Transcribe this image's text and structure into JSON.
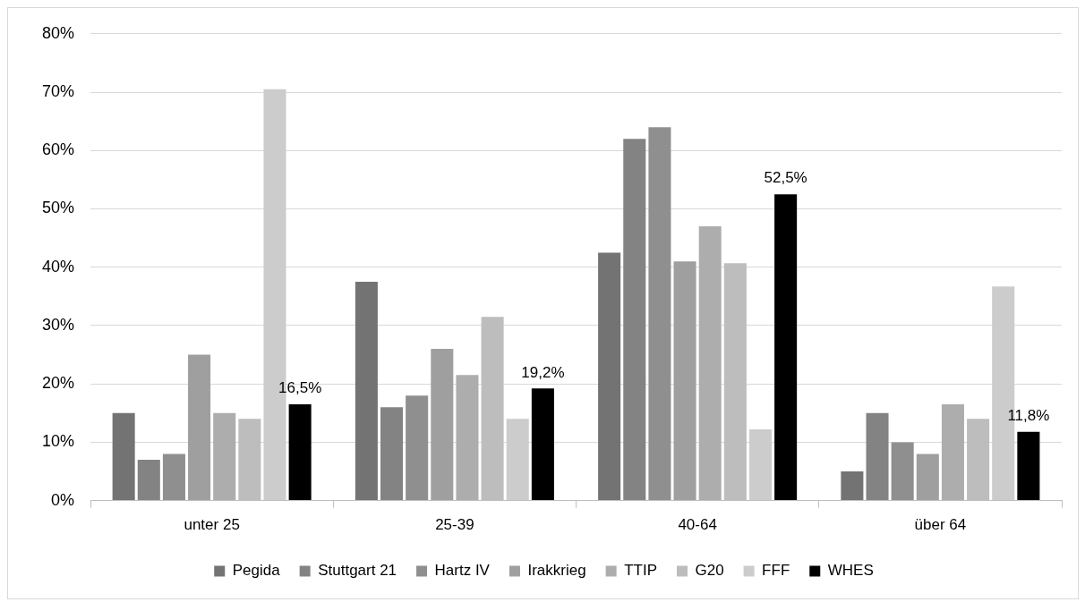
{
  "chart_data": {
    "type": "bar",
    "categories": [
      "unter 25",
      "25-39",
      "40-64",
      "über 64"
    ],
    "series": [
      {
        "name": "Pegida",
        "color": "#737373",
        "values": [
          15,
          37.5,
          42.5,
          5
        ]
      },
      {
        "name": "Stuttgart 21",
        "color": "#838383",
        "values": [
          7,
          16,
          62,
          15
        ]
      },
      {
        "name": "Hartz IV",
        "color": "#8f8f8f",
        "values": [
          8,
          18,
          64,
          10
        ]
      },
      {
        "name": "Irakkrieg",
        "color": "#9f9f9f",
        "values": [
          25,
          26,
          41,
          8
        ]
      },
      {
        "name": "TTIP",
        "color": "#adadad",
        "values": [
          15,
          21.5,
          47,
          16.5
        ]
      },
      {
        "name": "G20",
        "color": "#bdbdbd",
        "values": [
          14,
          31.5,
          40.7,
          14
        ]
      },
      {
        "name": "FFF",
        "color": "#cccccc",
        "values": [
          70.5,
          14,
          12.2,
          36.7
        ]
      },
      {
        "name": "WHES",
        "color": "#000000",
        "values": [
          16.5,
          19.2,
          52.5,
          11.8
        ],
        "value_labels": [
          "16,5%",
          "19,2%",
          "52,5%",
          "11,8%"
        ]
      }
    ],
    "ylim": [
      0,
      80
    ],
    "yticks": [
      {
        "value": 0,
        "label": "0%"
      },
      {
        "value": 10,
        "label": "10%"
      },
      {
        "value": 20,
        "label": "20%"
      },
      {
        "value": 30,
        "label": "30%"
      },
      {
        "value": 40,
        "label": "40%"
      },
      {
        "value": 50,
        "label": "50%"
      },
      {
        "value": 60,
        "label": "60%"
      },
      {
        "value": 70,
        "label": "70%"
      },
      {
        "value": 80,
        "label": "80%"
      }
    ],
    "grid": "y",
    "legend": "bottom"
  }
}
